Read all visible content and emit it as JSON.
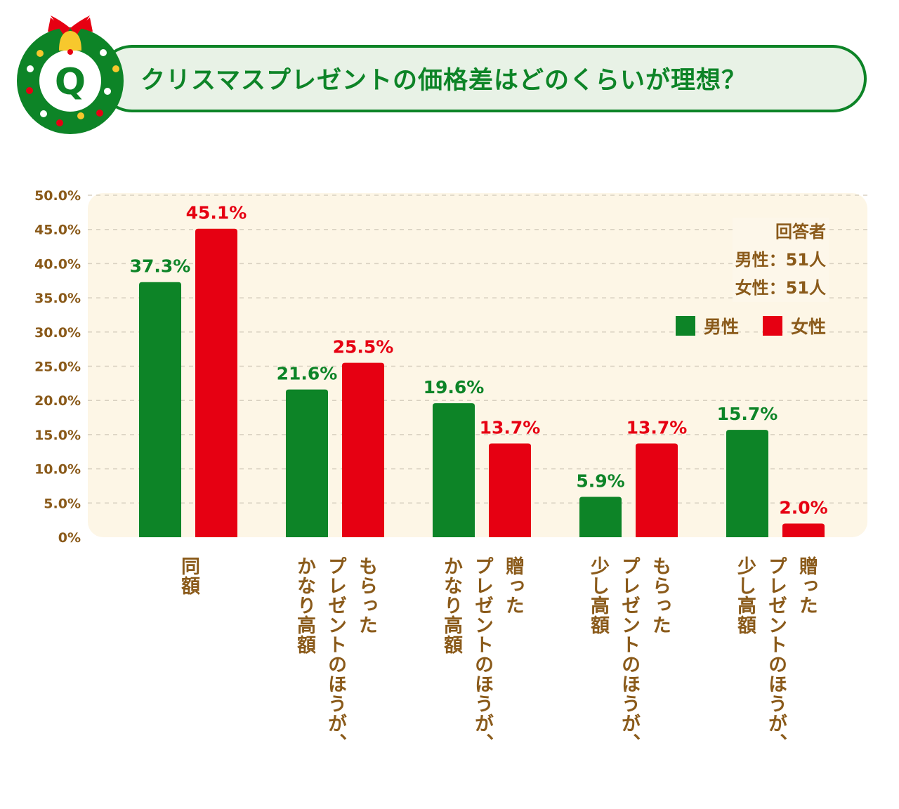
{
  "header": {
    "badge_letter": "Q",
    "title": "クリスマスプレゼントの価格差はどのくらいが理想？"
  },
  "colors": {
    "male": "#0d8427",
    "female": "#e60012",
    "text": "#8a5a1a",
    "panel": "#fdf6e6"
  },
  "respondents": {
    "heading": "回答者",
    "male": "男性：51人",
    "female": "女性：51人"
  },
  "chart_data": {
    "type": "bar",
    "title": "クリスマスプレゼントの価格差はどのくらいが理想？",
    "categories": [
      [
        "同額"
      ],
      [
        "もらった",
        "プレゼントのほうが、",
        "かなり高額"
      ],
      [
        "贈った",
        "プレゼントのほうが、",
        "かなり高額"
      ],
      [
        "もらった",
        "プレゼントのほうが、",
        "少し高額"
      ],
      [
        "贈った",
        "プレゼントのほうが、",
        "少し高額"
      ]
    ],
    "series": [
      {
        "name": "男性",
        "values": [
          37.3,
          21.6,
          19.6,
          5.9,
          15.7
        ],
        "labels": [
          "37.3%",
          "21.6%",
          "19.6%",
          "5.9%",
          "15.7%"
        ]
      },
      {
        "name": "女性",
        "values": [
          45.1,
          25.5,
          13.7,
          13.7,
          2.0
        ],
        "labels": [
          "45.1%",
          "25.5%",
          "13.7%",
          "13.7%",
          "2.0%"
        ]
      }
    ],
    "yticks": [
      "0%",
      "5.0%",
      "10.0%",
      "15.0%",
      "20.0%",
      "25.0%",
      "30.0%",
      "35.0%",
      "40.0%",
      "45.0%",
      "50.0%"
    ],
    "ylim": [
      0,
      50
    ],
    "grid": true,
    "legend": "top-right"
  }
}
